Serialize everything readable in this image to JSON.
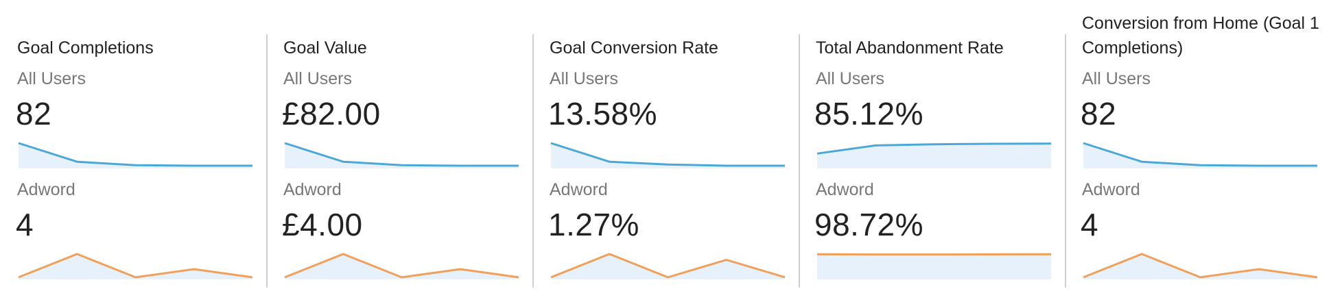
{
  "colors": {
    "seg1_line": "#4aa8d8",
    "seg2_line": "#f0a05a",
    "fill": "#e6f1fb",
    "divider": "#cfcfcf"
  },
  "segments": [
    "All Users",
    "Adword"
  ],
  "cards": [
    {
      "title": "Goal Completions",
      "seg1_value": "82",
      "seg2_value": "4",
      "seg1_trend": [
        1.0,
        0.2,
        0.05,
        0.03,
        0.03
      ],
      "seg2_trend": [
        0.0,
        1.0,
        0.0,
        0.35,
        0.0
      ]
    },
    {
      "title": "Goal Value",
      "seg1_value": "£82.00",
      "seg2_value": "£4.00",
      "seg1_trend": [
        1.0,
        0.2,
        0.05,
        0.03,
        0.03
      ],
      "seg2_trend": [
        0.0,
        1.0,
        0.0,
        0.35,
        0.0
      ]
    },
    {
      "title": "Goal Conversion Rate",
      "seg1_value": "13.58%",
      "seg2_value": "1.27%",
      "seg1_trend": [
        1.0,
        0.2,
        0.08,
        0.03,
        0.03
      ],
      "seg2_trend": [
        0.0,
        1.0,
        0.0,
        0.75,
        0.0
      ]
    },
    {
      "title": "Total Abandonment Rate",
      "seg1_value": "85.12%",
      "seg2_value": "98.72%",
      "seg1_trend": [
        0.55,
        0.9,
        0.95,
        0.97,
        0.98
      ],
      "seg2_trend": [
        0.99,
        0.98,
        0.98,
        0.985,
        0.99
      ]
    },
    {
      "title": "Conversion from Home (Goal 1 Completions)",
      "seg1_value": "82",
      "seg2_value": "4",
      "seg1_trend": [
        1.0,
        0.2,
        0.05,
        0.03,
        0.03
      ],
      "seg2_trend": [
        0.0,
        1.0,
        0.0,
        0.35,
        0.0
      ]
    }
  ]
}
